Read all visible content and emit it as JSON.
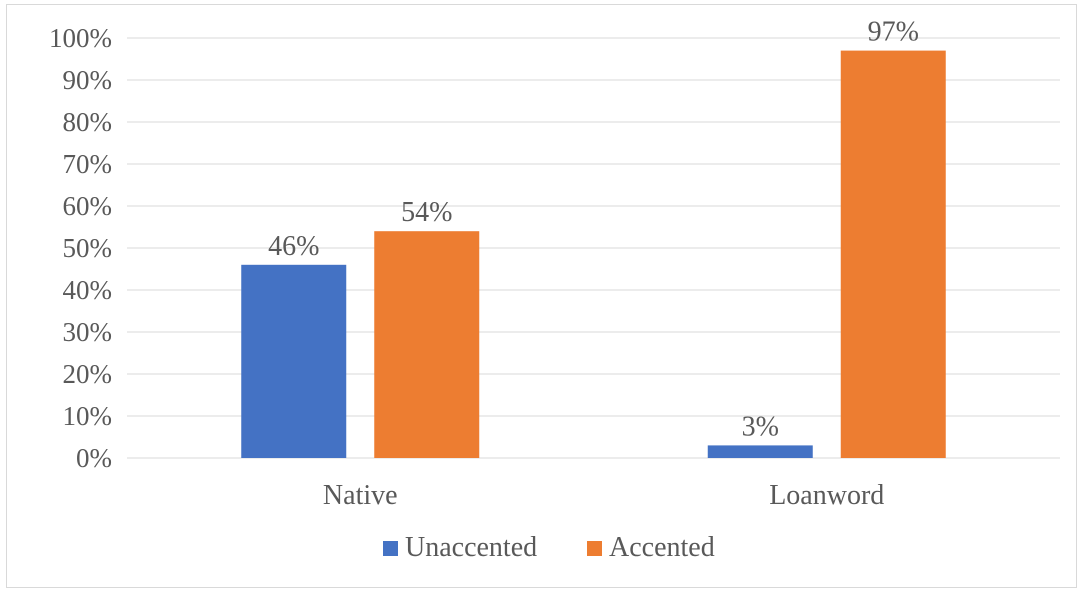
{
  "chart_data": {
    "type": "bar",
    "categories": [
      "Native",
      "Loanword"
    ],
    "series": [
      {
        "name": "Unaccented",
        "values": [
          46,
          3
        ],
        "color": "#4472c4",
        "labels": [
          "46%",
          "3%"
        ]
      },
      {
        "name": "Accented",
        "values": [
          54,
          97
        ],
        "color": "#ed7d31",
        "labels": [
          "54%",
          "97%"
        ]
      }
    ],
    "y_ticks": [
      "0%",
      "10%",
      "20%",
      "30%",
      "40%",
      "50%",
      "60%",
      "70%",
      "80%",
      "90%",
      "100%"
    ],
    "ylim": [
      0,
      100
    ],
    "grid": true,
    "legend_position": "bottom"
  }
}
